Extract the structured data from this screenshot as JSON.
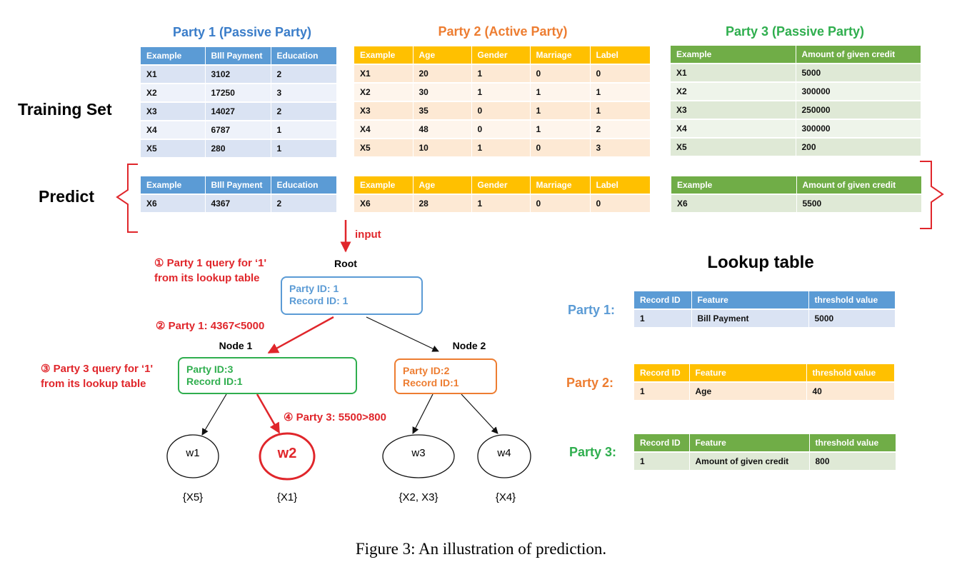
{
  "colors": {
    "party1": "#3a7dc9",
    "party2": "#ed7d31",
    "party3": "#2fae4e",
    "red": "#e0262b"
  },
  "row_labels": {
    "training": "Training Set",
    "predict": "Predict"
  },
  "party1": {
    "title": "Party 1 (Passive Party)",
    "headers": [
      "Example",
      "BIll Payment",
      "Education"
    ],
    "train": [
      [
        "X1",
        "3102",
        "2"
      ],
      [
        "X2",
        "17250",
        "3"
      ],
      [
        "X3",
        "14027",
        "2"
      ],
      [
        "X4",
        "6787",
        "1"
      ],
      [
        "X5",
        "280",
        "1"
      ]
    ],
    "predict": [
      [
        "X6",
        "4367",
        "2"
      ]
    ]
  },
  "party2": {
    "title": "Party 2 (Active Party)",
    "headers": [
      "Example",
      "Age",
      "Gender",
      "Marriage",
      "Label"
    ],
    "train": [
      [
        "X1",
        "20",
        "1",
        "0",
        "0"
      ],
      [
        "X2",
        "30",
        "1",
        "1",
        "1"
      ],
      [
        "X3",
        "35",
        "0",
        "1",
        "1"
      ],
      [
        "X4",
        "48",
        "0",
        "1",
        "2"
      ],
      [
        "X5",
        "10",
        "1",
        "0",
        "3"
      ]
    ],
    "predict": [
      [
        "X6",
        "28",
        "1",
        "0",
        "0"
      ]
    ]
  },
  "party3": {
    "title": "Party 3 (Passive Party)",
    "headers": [
      "Example",
      "Amount of given credit"
    ],
    "train": [
      [
        "X1",
        "5000"
      ],
      [
        "X2",
        "300000"
      ],
      [
        "X3",
        "250000"
      ],
      [
        "X4",
        "300000"
      ],
      [
        "X5",
        "200"
      ]
    ],
    "predict": [
      [
        "X6",
        "5500"
      ]
    ]
  },
  "tree": {
    "input_label": "input",
    "root_label": "Root",
    "root_line1": "Party ID: 1",
    "root_line2": "Record ID: 1",
    "node1_label": "Node 1",
    "node1_line1": "Party ID:3",
    "node1_line2": "Record ID:1",
    "node2_label": "Node 2",
    "node2_line1": "Party ID:2",
    "node2_line2": "Record ID:1",
    "leaves": [
      "w1",
      "w2",
      "w3",
      "w4"
    ],
    "sets": [
      "{X5}",
      "{X1}",
      "{X2, X3}",
      "{X4}"
    ]
  },
  "steps": {
    "s1_line1": "① Party 1 query for ‘1'",
    "s1_line2": "from its lookup table",
    "s2": "② Party 1: 4367<5000",
    "s3_line1": "③ Party 3 query for ‘1'",
    "s3_line2": "from its lookup table",
    "s4": "④ Party 3: 5500>800"
  },
  "lookup": {
    "title": "Lookup table",
    "headers": [
      "Record ID",
      "Feature",
      "threshold value"
    ],
    "p1_label": "Party 1:",
    "p1_row": [
      "1",
      "Bill Payment",
      "5000"
    ],
    "p2_label": "Party 2:",
    "p2_row": [
      "1",
      "Age",
      "40"
    ],
    "p3_label": "Party 3:",
    "p3_row": [
      "1",
      "Amount of given credit",
      "800"
    ]
  },
  "caption": "Figure 3: An illustration of prediction."
}
